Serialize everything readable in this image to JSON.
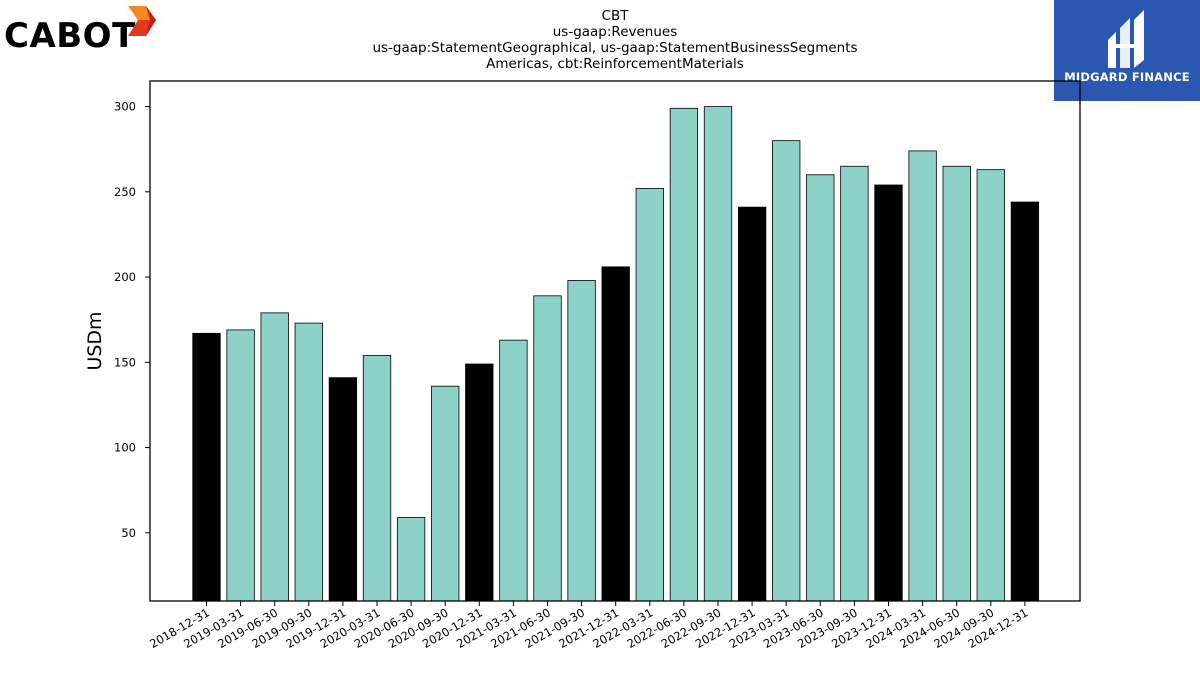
{
  "logos": {
    "left_brand": "CABOT",
    "right_brand": "MIDGARD FINANCE"
  },
  "colors": {
    "bar_quarter": "#8dd2c7",
    "bar_year_end": "#000000",
    "bar_edge": "#000000",
    "midgard_bg": "#2a57b0",
    "cabot_orange": "#f08a24",
    "cabot_red": "#e03a1e"
  },
  "chart_data": {
    "type": "bar",
    "title_lines": [
      "CBT",
      "us-gaap:Revenues",
      "us-gaap:StatementGeographical, us-gaap:StatementBusinessSegments",
      "Americas, cbt:ReinforcementMaterials"
    ],
    "xlabel": "",
    "ylabel": "USDm",
    "ylim": [
      10,
      315
    ],
    "yticks": [
      50,
      100,
      150,
      200,
      250,
      300
    ],
    "grid": false,
    "categories": [
      "2018-12-31",
      "2019-03-31",
      "2019-06-30",
      "2019-09-30",
      "2019-12-31",
      "2020-03-31",
      "2020-06-30",
      "2020-09-30",
      "2020-12-31",
      "2021-03-31",
      "2021-06-30",
      "2021-09-30",
      "2021-12-31",
      "2022-03-31",
      "2022-06-30",
      "2022-09-30",
      "2022-12-31",
      "2023-03-31",
      "2023-06-30",
      "2023-09-30",
      "2023-12-31",
      "2024-03-31",
      "2024-06-30",
      "2024-09-30",
      "2024-12-31"
    ],
    "values": [
      167,
      169,
      179,
      173,
      141,
      154,
      59,
      136,
      149,
      163,
      189,
      198,
      206,
      252,
      299,
      300,
      241,
      280,
      260,
      265,
      254,
      274,
      265,
      263,
      244
    ]
  }
}
